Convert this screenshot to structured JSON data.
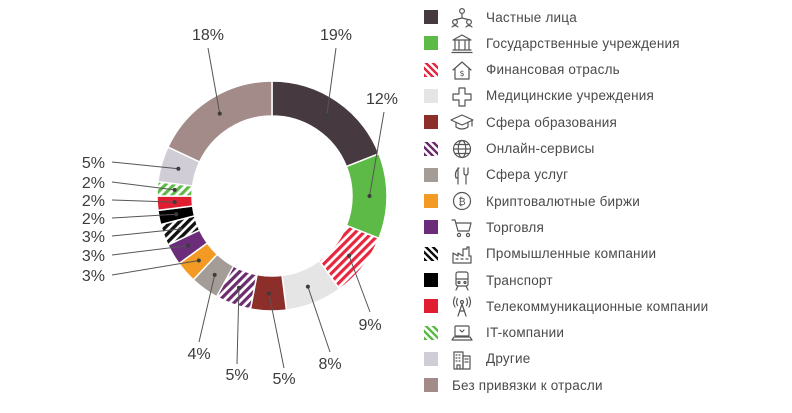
{
  "chart_data": {
    "type": "pie",
    "donut": true,
    "title": "",
    "slices": [
      {
        "label": "Частные лица",
        "value": 19,
        "display": "19%",
        "color": "#46393f",
        "pattern": "solid",
        "icon": "people-network-icon"
      },
      {
        "label": "Государственные учреждения",
        "value": 12,
        "display": "12%",
        "color": "#5dba47",
        "pattern": "solid",
        "icon": "government-building-icon"
      },
      {
        "label": "Финансовая отрасль",
        "value": 9,
        "display": "9%",
        "color": "#e5283f",
        "pattern": "hatch",
        "icon": "bank-house-icon"
      },
      {
        "label": "Медицинские учреждения",
        "value": 8,
        "display": "8%",
        "color": "#e5e5e5",
        "pattern": "solid",
        "icon": "medical-cross-icon"
      },
      {
        "label": "Сфера образования",
        "value": 5,
        "display": "5%",
        "color": "#8c2f2b",
        "pattern": "solid",
        "icon": "graduation-cap-icon"
      },
      {
        "label": "Онлайн-сервисы",
        "value": 5,
        "display": "5%",
        "color": "#6b2d6e",
        "pattern": "hatch",
        "icon": "globe-icon"
      },
      {
        "label": "Сфера услуг",
        "value": 4,
        "display": "4%",
        "color": "#a39c97",
        "pattern": "solid",
        "icon": "cutlery-icon"
      },
      {
        "label": "Криптовалютные биржи",
        "value": 3,
        "display": "3%",
        "color": "#f39a24",
        "pattern": "solid",
        "icon": "bitcoin-icon"
      },
      {
        "label": "Торговля",
        "value": 3,
        "display": "3%",
        "color": "#6b2d7a",
        "pattern": "solid",
        "icon": "shopping-cart-icon"
      },
      {
        "label": "Промышленные компании",
        "value": 3,
        "display": "3%",
        "color": "#111111",
        "pattern": "hatch",
        "icon": "factory-icon"
      },
      {
        "label": "Транспорт",
        "value": 2,
        "display": "2%",
        "color": "#000000",
        "pattern": "solid",
        "icon": "train-icon"
      },
      {
        "label": "Телекоммуникационные компании",
        "value": 2,
        "display": "2%",
        "color": "#e11d31",
        "pattern": "solid",
        "icon": "antenna-icon"
      },
      {
        "label": "IT-компании",
        "value": 2,
        "display": "2%",
        "color": "#5dba47",
        "pattern": "hatch",
        "icon": "laptop-icon"
      },
      {
        "label": "Другие",
        "value": 5,
        "display": "5%",
        "color": "#d0cdd6",
        "pattern": "solid",
        "icon": "office-building-icon"
      },
      {
        "label": "Без привязки к отрасли",
        "value": 18,
        "display": "18%",
        "color": "#a28b88",
        "pattern": "solid",
        "icon": ""
      }
    ],
    "legend_position": "right"
  }
}
